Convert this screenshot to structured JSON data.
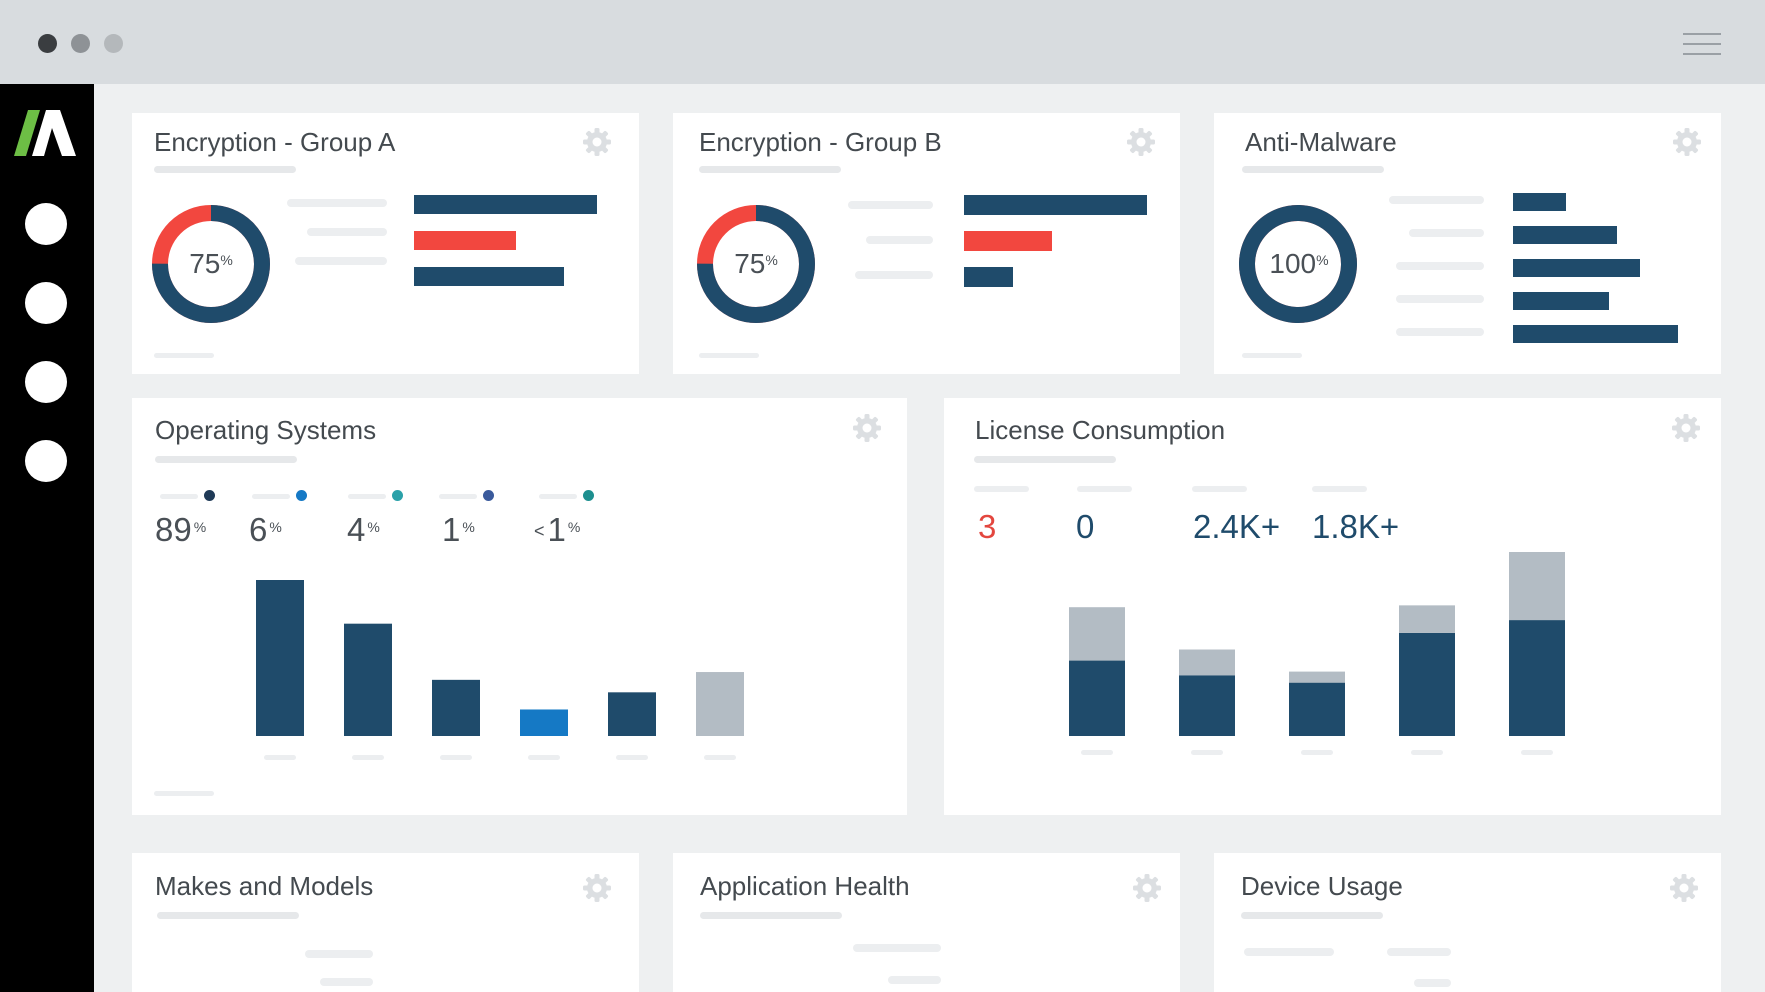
{
  "window": {
    "controls": [
      "close",
      "minimize",
      "maximize"
    ],
    "control_colors": [
      "#3a3d40",
      "#8e9296",
      "#b4b8bb"
    ],
    "menu_icon": "hamburger-menu-icon"
  },
  "sidebar": {
    "logo": "brand-logo",
    "items": [
      "nav-item",
      "nav-item",
      "nav-item",
      "nav-item"
    ]
  },
  "colors": {
    "navy": "#1f4b6b",
    "red": "#f2473f",
    "blue": "#1579c5",
    "teal": "#2aa1a9",
    "gray": "#b3bcc4",
    "logo_green": "#6dbe45"
  },
  "cards": {
    "enc_a": {
      "title": "Encryption - Group A",
      "donut_value": "75",
      "donut_unit": "%",
      "donut_fraction": 0.75,
      "bars": [
        1.0,
        0.56,
        0.82
      ]
    },
    "enc_b": {
      "title": "Encryption - Group B",
      "donut_value": "75",
      "donut_unit": "%",
      "donut_fraction": 0.75,
      "bars": [
        1.0,
        0.48,
        0.27
      ]
    },
    "anti_malware": {
      "title": "Anti-Malware",
      "donut_value": "100",
      "donut_unit": "%",
      "donut_fraction": 1.0,
      "bars": [
        0.32,
        0.63,
        0.77,
        0.58,
        1.0
      ]
    },
    "os": {
      "title": "Operating Systems",
      "stats": [
        {
          "prefix": "",
          "value": "89",
          "unit": "%",
          "dot_color": "#1f3a57"
        },
        {
          "prefix": "",
          "value": "6",
          "unit": "%",
          "dot_color": "#1579c5"
        },
        {
          "prefix": "",
          "value": "4",
          "unit": "%",
          "dot_color": "#2aa1a9"
        },
        {
          "prefix": "",
          "value": "1",
          "unit": "%",
          "dot_color": "#3a5a9c"
        },
        {
          "prefix": "<",
          "value": "1",
          "unit": "%",
          "dot_color": "#1d8f8f"
        }
      ]
    },
    "license": {
      "title": "License Consumption",
      "stats": [
        "3",
        "0",
        "2.4K+",
        "1.8K+"
      ],
      "stat_colors": [
        "#e3463e",
        "#1f4b6b",
        "#1f4b6b",
        "#1f4b6b"
      ]
    },
    "makes": {
      "title": "Makes and Models"
    },
    "app_health": {
      "title": "Application Health"
    },
    "device_usage": {
      "title": "Device Usage"
    }
  },
  "chart_data": [
    {
      "type": "bar",
      "categories": [
        "",
        "",
        "",
        "",
        "",
        ""
      ],
      "values": [
        100,
        72,
        36,
        17,
        28,
        41
      ],
      "colors": [
        "#1f4b6b",
        "#1f4b6b",
        "#1f4b6b",
        "#1579c5",
        "#1f4b6b",
        "#b3bcc4"
      ],
      "title": "",
      "xlabel": "",
      "ylabel": "",
      "ylim": [
        0,
        100
      ],
      "grid": false
    },
    {
      "type": "bar",
      "stacked": true,
      "categories": [
        "",
        "",
        "",
        "",
        ""
      ],
      "series": [
        {
          "values": [
            41,
            33,
            29,
            56,
            63
          ],
          "color": "#1f4b6b"
        },
        {
          "values": [
            29,
            14,
            6,
            15,
            37
          ],
          "color": "#b3bcc4"
        }
      ],
      "title": "",
      "xlabel": "",
      "ylabel": "",
      "ylim": [
        0,
        100
      ],
      "grid": false
    }
  ]
}
